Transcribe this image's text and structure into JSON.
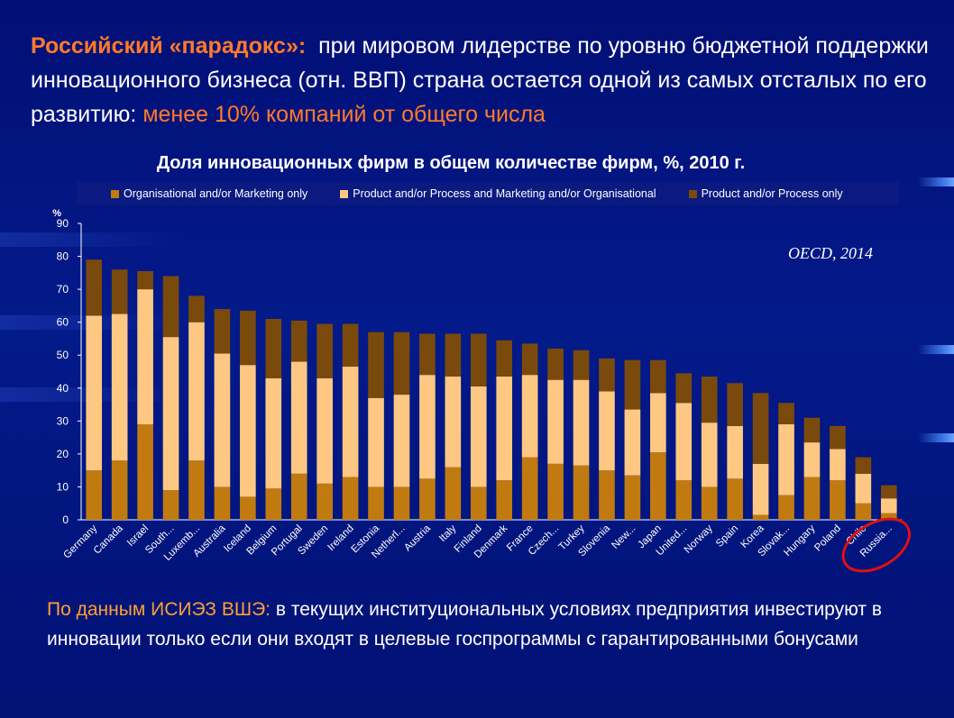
{
  "headline": {
    "part1": "Российский «парадокс»:",
    "part2": "при мировом  лидерстве  по уровню бюджетной поддержки инновационного бизнеса (отн. ВВП) страна  остается одной из самых отсталых по его развитию:",
    "part3": "менее 10% компаний от общего числа"
  },
  "footer": {
    "accent": "По  данным  ИСИЭЗ  ВШЭ:",
    "text": "в текущих институциональных условиях предприятия инвестируют в инновации  только если  они входят в целевые госпрограммы с гарантированными  бонусами"
  },
  "colors": {
    "organisational": "#c07a10",
    "combined": "#ffc882",
    "product": "#7a4a0c",
    "highlight": "#e01010"
  },
  "chart_data": {
    "type": "bar",
    "stacked": true,
    "title": "Доля инновационных фирм в общем количестве фирм, %, 2010 г.",
    "ylabel": "%",
    "ylim": [
      0,
      90
    ],
    "yticks": [
      0,
      10,
      20,
      30,
      40,
      50,
      60,
      70,
      80,
      90
    ],
    "annotation": "OECD, 2014",
    "legend_position": "top",
    "categories": [
      "Germany",
      "Canada",
      "Israel",
      "South...",
      "Luxemb...",
      "Australia",
      "Iceland",
      "Belgium",
      "Portugal",
      "Sweden",
      "Ireland",
      "Estonia",
      "Netherl...",
      "Austria",
      "Italy",
      "Finland",
      "Denmark",
      "France",
      "Czech...",
      "Turkey",
      "Slovenia",
      "New...",
      "Japan",
      "United...",
      "Norway",
      "Spain",
      "Korea",
      "Slovak...",
      "Hungary",
      "Poland",
      "Chile",
      "Russia..."
    ],
    "series": [
      {
        "name": "Organisational and/or Marketing only",
        "key": "organisational",
        "values": [
          15,
          18,
          29,
          9,
          18,
          10,
          7,
          9.5,
          14,
          11,
          13,
          10,
          10,
          12.5,
          16,
          10,
          12,
          19,
          17,
          16.5,
          15,
          13.5,
          20.5,
          12,
          10,
          12.5,
          1.5,
          7.5,
          13,
          12,
          5,
          2
        ]
      },
      {
        "name": "Product and/or Process and Marketing and/or Organisational",
        "key": "combined",
        "values": [
          47,
          44.5,
          41,
          46.5,
          42,
          40.5,
          40,
          33.5,
          34,
          32,
          33.5,
          27,
          28,
          31.5,
          27.5,
          30.5,
          31.5,
          25,
          25.5,
          26,
          24,
          20,
          18,
          23.5,
          19.5,
          16,
          15.5,
          21.5,
          10.5,
          9.5,
          9,
          4.5
        ]
      },
      {
        "name": "Product and/or Process only",
        "key": "product",
        "values": [
          17,
          13.5,
          5.5,
          18.5,
          8,
          13.5,
          16.5,
          18,
          12.5,
          16.5,
          13,
          20,
          19,
          12.5,
          13,
          16,
          11,
          9.5,
          9.5,
          9,
          10,
          15,
          10,
          9,
          14,
          13,
          21.5,
          6.5,
          7.5,
          7,
          5,
          4
        ]
      }
    ]
  }
}
